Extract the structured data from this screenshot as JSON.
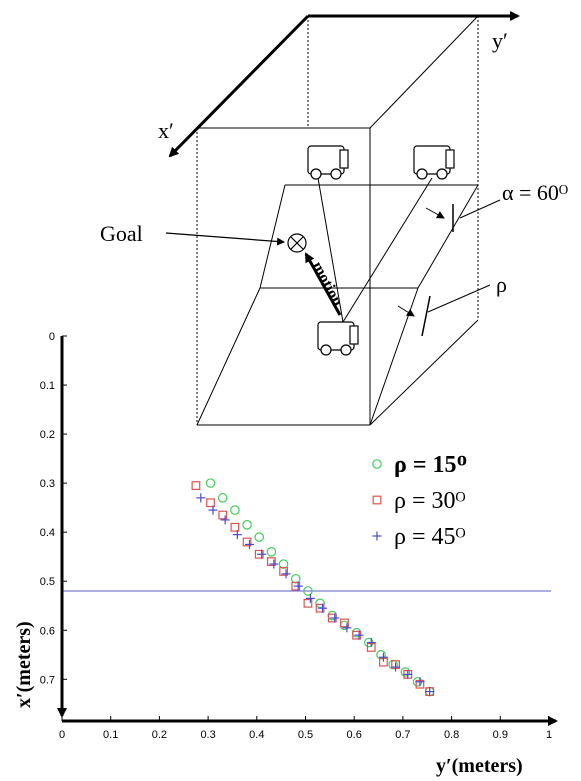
{
  "diagram": {
    "axis_x_label": "x′",
    "axis_y_label": "y′",
    "goal_label": "Goal",
    "motion_label": "motion",
    "alpha_label": "α = 60ᴼ",
    "rho_label": "ρ"
  },
  "chart_data": {
    "type": "scatter",
    "xlabel": "y′(meters)",
    "ylabel": "x′(meters)",
    "xlim": [
      0,
      1
    ],
    "ylim": [
      0,
      0.75
    ],
    "y_inverted": true,
    "x_ticks": [
      "0",
      "0.1",
      "0.2",
      "0.3",
      "0.4",
      "0.5",
      "0.6",
      "0.7",
      "0.8",
      "0.9",
      "1"
    ],
    "y_ticks": [
      "0",
      "0.1",
      "0.2",
      "0.3",
      "0.4",
      "0.5",
      "0.6",
      "0.7"
    ],
    "legend_position": "right",
    "reference_line": {
      "y": 0.52,
      "color": "#7b7bd6"
    },
    "series": [
      {
        "name": "ρ = 15ᴼ",
        "marker": "circle",
        "color": "#3fce5c",
        "x": [
          0.305,
          0.33,
          0.355,
          0.38,
          0.405,
          0.43,
          0.455,
          0.48,
          0.505,
          0.53,
          0.555,
          0.58,
          0.605,
          0.63,
          0.655,
          0.68,
          0.705,
          0.73,
          0.755
        ],
        "y": [
          0.3,
          0.33,
          0.355,
          0.385,
          0.41,
          0.44,
          0.465,
          0.495,
          0.52,
          0.545,
          0.57,
          0.59,
          0.605,
          0.625,
          0.65,
          0.67,
          0.685,
          0.705,
          0.725
        ]
      },
      {
        "name": "ρ = 30ᴼ",
        "marker": "square",
        "color": "#e05252",
        "x": [
          0.275,
          0.305,
          0.33,
          0.355,
          0.38,
          0.405,
          0.43,
          0.455,
          0.48,
          0.505,
          0.53,
          0.555,
          0.58,
          0.605,
          0.635,
          0.66,
          0.685,
          0.71,
          0.735,
          0.755
        ],
        "y": [
          0.305,
          0.34,
          0.365,
          0.39,
          0.42,
          0.445,
          0.46,
          0.48,
          0.51,
          0.545,
          0.555,
          0.575,
          0.585,
          0.61,
          0.635,
          0.665,
          0.67,
          0.69,
          0.71,
          0.725
        ]
      },
      {
        "name": "ρ = 45ᴼ",
        "marker": "plus",
        "color": "#4a4ad0",
        "x": [
          0.285,
          0.31,
          0.335,
          0.36,
          0.385,
          0.41,
          0.435,
          0.46,
          0.485,
          0.51,
          0.535,
          0.56,
          0.585,
          0.61,
          0.635,
          0.66,
          0.685,
          0.71,
          0.735,
          0.755
        ],
        "y": [
          0.33,
          0.355,
          0.375,
          0.405,
          0.425,
          0.445,
          0.465,
          0.485,
          0.51,
          0.535,
          0.555,
          0.575,
          0.595,
          0.61,
          0.625,
          0.655,
          0.675,
          0.69,
          0.705,
          0.725
        ]
      }
    ]
  }
}
